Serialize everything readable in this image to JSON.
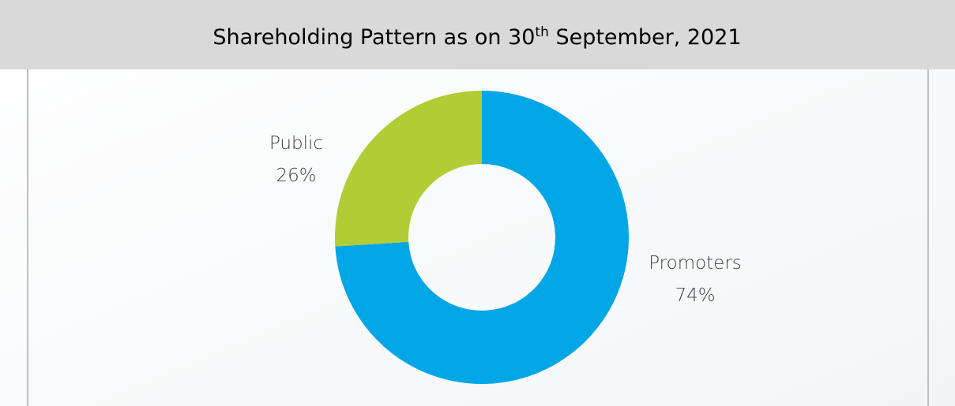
{
  "chart_data": {
    "type": "donut",
    "title": [
      "Shareholding Pattern as on 30",
      "th",
      " September, 2021"
    ],
    "categories": [
      "Promoters",
      "Public"
    ],
    "values": [
      74,
      26
    ],
    "value_labels": [
      "74%",
      "26%"
    ],
    "colors": [
      "#00a6e6",
      "#b1cd35"
    ]
  }
}
